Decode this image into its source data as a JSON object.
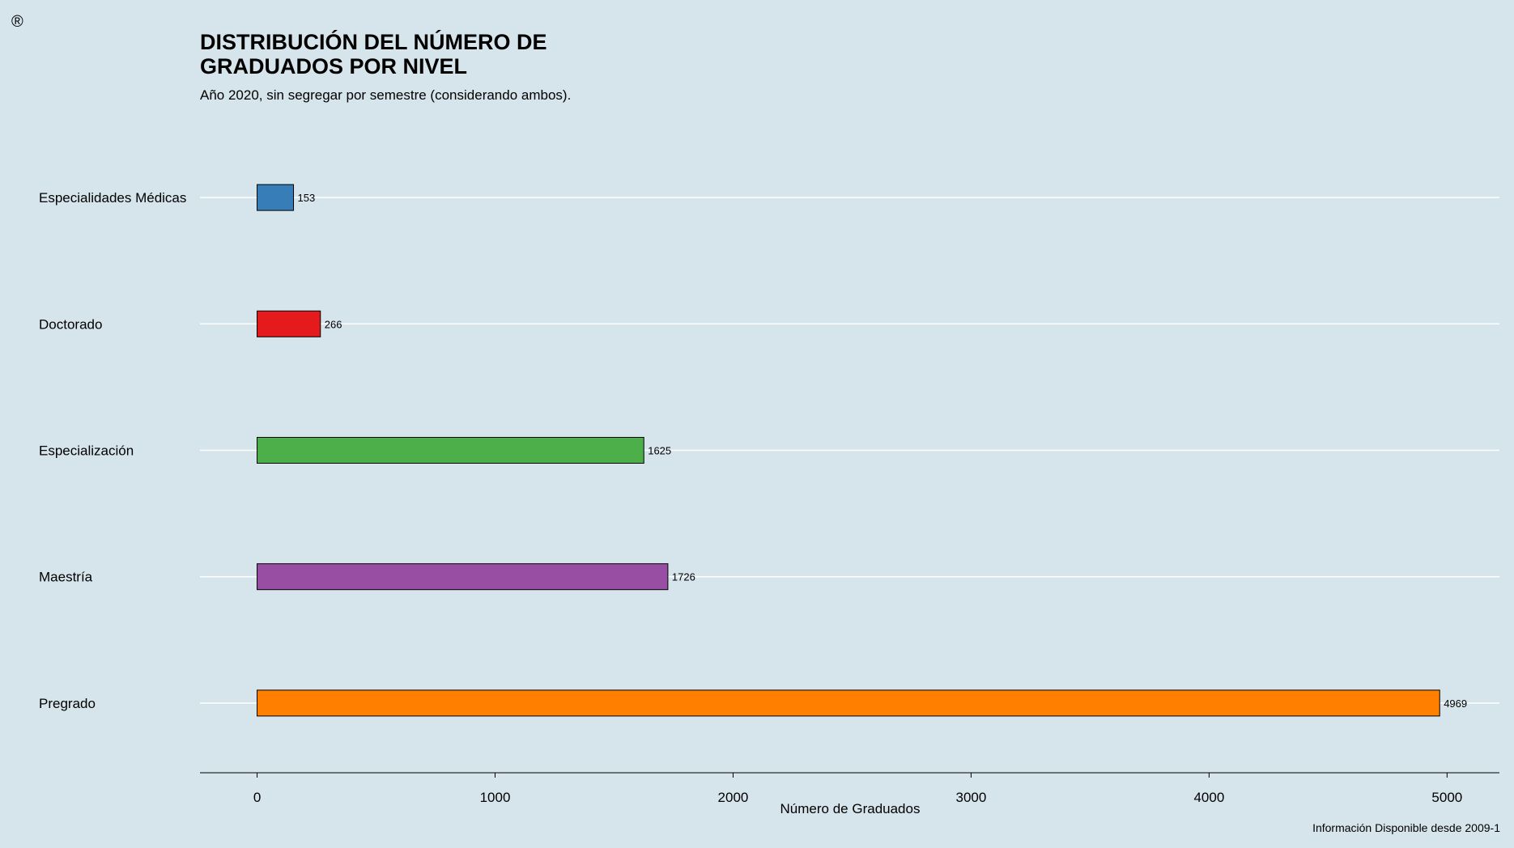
{
  "mark": "®",
  "caption": "Información Disponible desde 2009-1",
  "colors": {
    "background": "#d6e4ec",
    "gridline": "#ffffff",
    "axis": "#000000"
  },
  "chart_data": {
    "type": "bar",
    "orientation": "horizontal",
    "title": "DISTRIBUCIÓN DEL NÚMERO DE GRADUADOS POR NIVEL",
    "subtitle": "Año 2020, sin segregar por semestre (considerando ambos).",
    "xlabel": "Número de Graduados",
    "ylabel": "",
    "categories": [
      "Especialidades Médicas",
      "Doctorado",
      "Especialización",
      "Maestría",
      "Pregrado"
    ],
    "values": [
      153,
      266,
      1625,
      1726,
      4969
    ],
    "bar_colors": [
      "#377eb8",
      "#e41a1c",
      "#4daf4a",
      "#984ea3",
      "#ff7f00"
    ],
    "data_labels": [
      "153",
      "266",
      "1625",
      "1726",
      "4969"
    ],
    "xticks": [
      0,
      1000,
      2000,
      3000,
      4000,
      5000
    ],
    "xtick_labels": [
      "0",
      "1000",
      "2000",
      "3000",
      "4000",
      "5000"
    ],
    "xlim": [
      -240,
      5220
    ],
    "grid": "horizontal lines per category",
    "legend": "none"
  }
}
